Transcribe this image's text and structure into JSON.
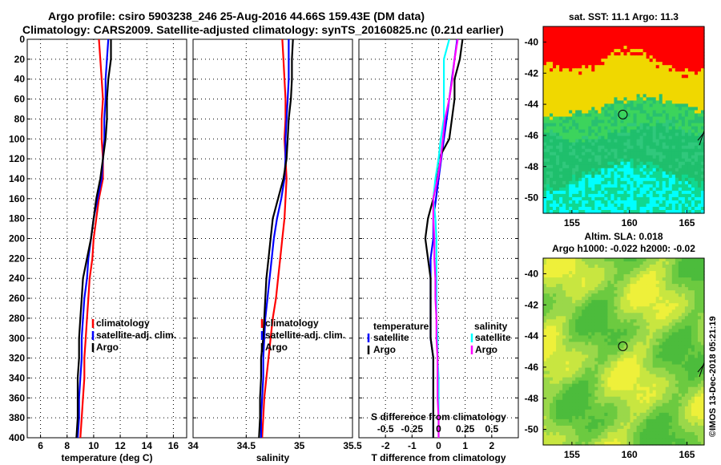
{
  "header": {
    "line1": "Argo profile: csiro 5903238_246 25-Aug-2016 44.66S 159.43E (DM data)",
    "line2": "Climatology: CARS2009. Satellite-adjusted climatology: synTS_20160825.nc (0.21d earlier)"
  },
  "watermark": "©IMOS 13-Dec-2018 05:21:19",
  "colors": {
    "climatology": "#ff0000",
    "satellite_adj": "#0000ff",
    "argo": "#000000",
    "sat_S": "#00ffff",
    "argo_S": "#ff00ff"
  },
  "chart_data": [
    {
      "type": "line",
      "id": "temperature",
      "xlabel": "temperature (deg C)",
      "ylabel": "",
      "xlim": [
        5,
        17
      ],
      "ylim": [
        400,
        0
      ],
      "xticks": [
        6,
        8,
        10,
        12,
        14,
        16
      ],
      "yticks": [
        0,
        20,
        40,
        60,
        80,
        100,
        120,
        140,
        160,
        180,
        200,
        220,
        240,
        260,
        280,
        300,
        320,
        340,
        360,
        380,
        400
      ],
      "grid": true,
      "legend": [
        "climatology",
        "satellite-adj. clim.",
        "Argo"
      ],
      "series": [
        {
          "name": "climatology",
          "color": "#ff0000",
          "x": [
            10.4,
            10.5,
            10.6,
            10.7,
            10.6,
            10.6,
            10.7,
            10.7,
            10.4,
            10.2,
            10.0,
            9.9,
            9.7,
            9.6,
            9.5,
            9.4,
            9.3,
            9.3,
            9.2,
            9.1,
            9.0
          ],
          "y": [
            0,
            20,
            40,
            60,
            80,
            100,
            120,
            140,
            160,
            180,
            200,
            220,
            240,
            260,
            280,
            300,
            320,
            340,
            360,
            380,
            400
          ]
        },
        {
          "name": "satellite-adj. clim.",
          "color": "#0000ff",
          "x": [
            11.1,
            11.0,
            10.9,
            10.9,
            10.8,
            10.8,
            10.7,
            10.6,
            10.3,
            10.0,
            9.8,
            9.6,
            9.5,
            9.3,
            9.2,
            9.1,
            9.1,
            9.0,
            8.9,
            8.9,
            8.8
          ],
          "y": [
            0,
            20,
            40,
            60,
            80,
            100,
            120,
            140,
            160,
            180,
            200,
            220,
            240,
            260,
            280,
            300,
            320,
            340,
            360,
            380,
            400
          ]
        },
        {
          "name": "Argo",
          "color": "#000000",
          "x": [
            11.3,
            11.3,
            11.1,
            11.0,
            11.0,
            10.9,
            10.7,
            10.5,
            10.2,
            10.0,
            9.8,
            9.5,
            9.2,
            9.1,
            9.0,
            8.9,
            8.9,
            8.8,
            8.8,
            8.8,
            8.7
          ],
          "y": [
            0,
            20,
            40,
            60,
            80,
            100,
            120,
            140,
            160,
            180,
            200,
            220,
            240,
            260,
            280,
            300,
            320,
            340,
            360,
            380,
            400
          ]
        }
      ]
    },
    {
      "type": "line",
      "id": "salinity",
      "xlabel": "salinity",
      "xlim": [
        34,
        35.5
      ],
      "ylim": [
        400,
        0
      ],
      "xticks": [
        34,
        34.5,
        35,
        35.5
      ],
      "grid": true,
      "legend": [
        "climatology",
        "satellite-adj. clim.",
        "Argo"
      ],
      "series": [
        {
          "name": "climatology",
          "color": "#ff0000",
          "x": [
            34.84,
            34.85,
            34.86,
            34.87,
            34.87,
            34.86,
            34.87,
            34.88,
            34.87,
            34.86,
            34.84,
            34.82,
            34.8,
            34.78,
            34.75,
            34.73,
            34.71,
            34.69,
            34.67,
            34.66,
            34.65
          ],
          "y": [
            0,
            20,
            40,
            60,
            80,
            100,
            120,
            140,
            160,
            180,
            200,
            220,
            240,
            260,
            280,
            300,
            320,
            340,
            360,
            380,
            400
          ]
        },
        {
          "name": "satellite-adj. clim.",
          "color": "#0000ff",
          "x": [
            34.9,
            34.9,
            34.9,
            34.89,
            34.88,
            34.87,
            34.87,
            34.86,
            34.83,
            34.79,
            34.76,
            34.74,
            34.72,
            34.7,
            34.68,
            34.67,
            34.66,
            34.66,
            34.65,
            34.64,
            34.64
          ],
          "y": [
            0,
            20,
            40,
            60,
            80,
            100,
            120,
            140,
            160,
            180,
            200,
            220,
            240,
            260,
            280,
            300,
            320,
            340,
            360,
            380,
            400
          ]
        },
        {
          "name": "Argo",
          "color": "#000000",
          "x": [
            34.94,
            34.93,
            34.93,
            34.92,
            34.9,
            34.89,
            34.88,
            34.85,
            34.8,
            34.75,
            34.73,
            34.71,
            34.69,
            34.68,
            34.67,
            34.66,
            34.64,
            34.64,
            34.63,
            34.63,
            34.62
          ],
          "y": [
            0,
            20,
            40,
            60,
            80,
            100,
            120,
            140,
            160,
            180,
            200,
            220,
            240,
            260,
            280,
            300,
            320,
            340,
            360,
            380,
            400
          ]
        }
      ]
    },
    {
      "type": "line",
      "id": "difference",
      "xlabel": "T difference from climatology",
      "top_label": "S difference from climatology",
      "xlim": [
        -3,
        3
      ],
      "ylim": [
        400,
        0
      ],
      "xticks": [
        -2,
        -1,
        0,
        1,
        2
      ],
      "top_ticks": [
        "-0.5",
        "-0.25",
        "0",
        "0.25",
        "0.5"
      ],
      "grid": true,
      "legend_T_title": "temperature",
      "legend_S_title": "salinity",
      "legend": [
        "satellite",
        "Argo",
        "satellite",
        "Argo"
      ],
      "series": [
        {
          "name": "T satellite",
          "color": "#0000ff",
          "x": [
            0.7,
            0.6,
            0.5,
            0.4,
            0.3,
            0.2,
            0.1,
            0.0,
            -0.1,
            -0.2,
            -0.2,
            -0.3,
            -0.3,
            -0.3,
            -0.3,
            -0.3,
            -0.2,
            -0.2,
            -0.2,
            -0.2,
            -0.2
          ],
          "y": [
            0,
            20,
            40,
            60,
            80,
            100,
            120,
            140,
            160,
            180,
            200,
            220,
            240,
            260,
            280,
            300,
            320,
            340,
            360,
            380,
            400
          ]
        },
        {
          "name": "T Argo",
          "color": "#000000",
          "x": [
            0.9,
            0.8,
            0.6,
            0.6,
            0.5,
            0.4,
            0.0,
            -0.1,
            -0.2,
            -0.4,
            -0.5,
            -0.4,
            -0.3,
            -0.3,
            -0.3,
            -0.3,
            -0.2,
            -0.2,
            -0.2,
            -0.2,
            -0.2
          ],
          "y": [
            0,
            20,
            40,
            60,
            80,
            100,
            120,
            140,
            160,
            180,
            200,
            220,
            240,
            260,
            280,
            300,
            320,
            340,
            360,
            380,
            400
          ]
        },
        {
          "name": "S satellite",
          "color": "#00ffff",
          "x": [
            0.1,
            0.05,
            0.05,
            0.05,
            0.05,
            0.02,
            0.0,
            -0.03,
            -0.05,
            -0.03,
            -0.02,
            -0.02,
            -0.02,
            -0.02,
            -0.02,
            -0.01,
            -0.01,
            0.0,
            0.0,
            0.0,
            0.0
          ],
          "y": [
            0,
            20,
            40,
            60,
            80,
            100,
            120,
            140,
            160,
            180,
            200,
            220,
            240,
            260,
            280,
            300,
            320,
            340,
            360,
            380,
            400
          ]
        },
        {
          "name": "S Argo",
          "color": "#ff00ff",
          "x": [
            0.18,
            0.15,
            0.13,
            0.1,
            0.06,
            0.04,
            0.02,
            -0.01,
            -0.05,
            -0.05,
            -0.04,
            -0.04,
            -0.03,
            -0.03,
            -0.02,
            -0.02,
            -0.01,
            -0.01,
            -0.01,
            0.0,
            0.0
          ],
          "y": [
            0,
            20,
            40,
            60,
            80,
            100,
            120,
            140,
            160,
            180,
            200,
            220,
            240,
            260,
            280,
            300,
            320,
            340,
            360,
            380,
            400
          ]
        }
      ]
    },
    {
      "type": "heatmap",
      "id": "sst_map",
      "title": "sat. SST: 11.1 Argo: 11.3",
      "xlim": [
        152.5,
        166.5
      ],
      "ylim": [
        -51,
        -39
      ],
      "xticks": [
        155,
        160,
        165
      ],
      "yticks": [
        -40,
        -42,
        -44,
        -46,
        -48,
        -50
      ],
      "argo_position": {
        "lon": 159.43,
        "lat": -44.66
      }
    },
    {
      "type": "heatmap",
      "id": "sla_map",
      "title": "Altim. SLA: 0.018",
      "subtitle": "Argo h1000: -0.022 h2000: -0.02",
      "xlim": [
        152.5,
        166.5
      ],
      "ylim": [
        -51,
        -39
      ],
      "xticks": [
        155,
        160,
        165
      ],
      "yticks": [
        -40,
        -42,
        -44,
        -46,
        -48,
        -50
      ],
      "argo_position": {
        "lon": 159.43,
        "lat": -44.66
      }
    }
  ]
}
